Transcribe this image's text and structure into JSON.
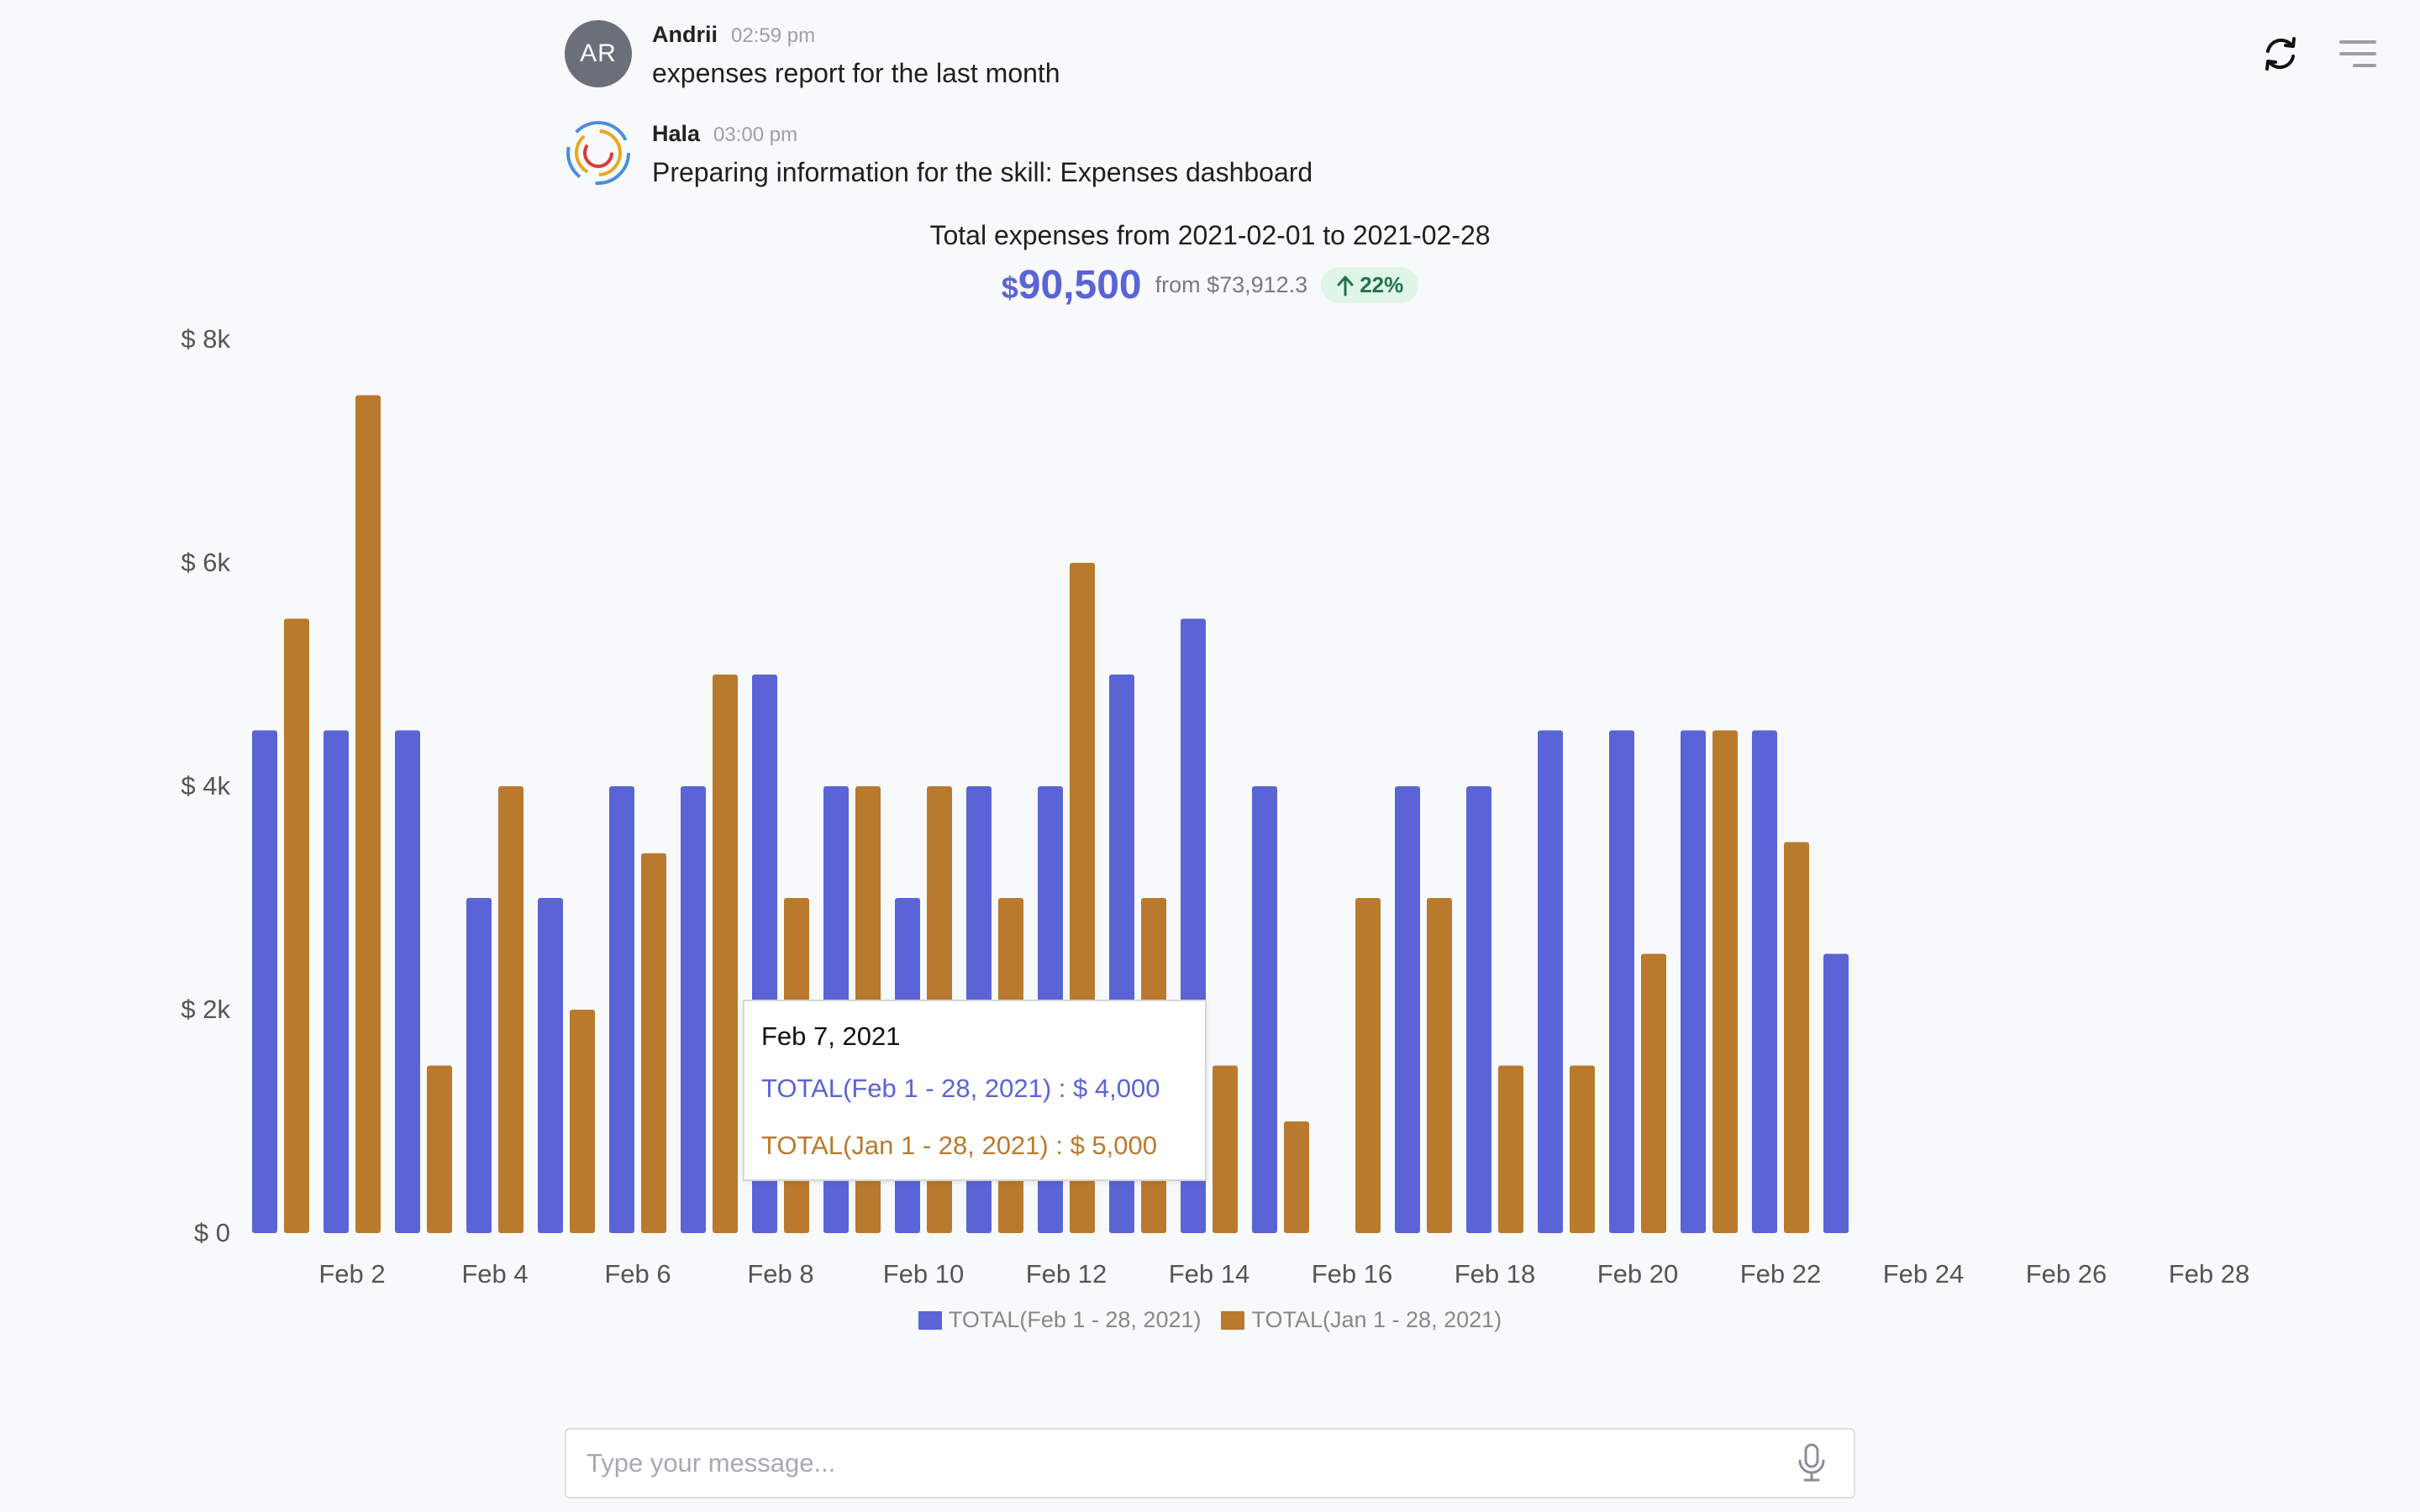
{
  "messages": [
    {
      "initials": "AR",
      "sender": "Andrii",
      "time": "02:59 pm",
      "text": "expenses report for the last month"
    },
    {
      "sender": "Hala",
      "time": "03:00 pm",
      "text": "Preparing information for the skill: Expenses dashboard"
    }
  ],
  "summary": {
    "title": "Total expenses from 2021-02-01 to 2021-02-28",
    "currency": "$",
    "amount": "90,500",
    "from_text": "from $73,912.3",
    "change": "22%"
  },
  "tooltip": {
    "date": "Feb 7, 2021",
    "row1": "TOTAL(Feb 1 - 28, 2021) : $ 4,000",
    "row2": "TOTAL(Jan 1 - 28, 2021) : $ 5,000"
  },
  "input": {
    "placeholder": "Type your message..."
  },
  "colors": {
    "current": "#5a64d6",
    "previous": "#b97a2d",
    "accent": "#5a64d6",
    "up": "#22734a"
  },
  "icons": [
    "refresh-icon",
    "menu-icon",
    "microphone-icon",
    "logo-icon",
    "arrow-up-icon"
  ],
  "chart_data": {
    "type": "bar",
    "ylim": [
      0,
      8000
    ],
    "y_ticks": [
      0,
      2000,
      4000,
      6000,
      8000
    ],
    "y_tick_labels": [
      "$ 0",
      "$ 2k",
      "$ 4k",
      "$ 6k",
      "$ 8k"
    ],
    "categories": [
      1,
      2,
      3,
      4,
      5,
      6,
      7,
      8,
      9,
      10,
      11,
      12,
      13,
      14,
      15,
      16,
      17,
      18,
      19,
      20,
      21,
      22,
      23,
      24,
      25,
      26,
      27,
      28
    ],
    "x_tick_labels": [
      {
        "day": 2,
        "label": "Feb 2"
      },
      {
        "day": 4,
        "label": "Feb 4"
      },
      {
        "day": 6,
        "label": "Feb 6"
      },
      {
        "day": 8,
        "label": "Feb 8"
      },
      {
        "day": 10,
        "label": "Feb 10"
      },
      {
        "day": 12,
        "label": "Feb 12"
      },
      {
        "day": 14,
        "label": "Feb 14"
      },
      {
        "day": 16,
        "label": "Feb 16"
      },
      {
        "day": 18,
        "label": "Feb 18"
      },
      {
        "day": 20,
        "label": "Feb 20"
      },
      {
        "day": 22,
        "label": "Feb 22"
      },
      {
        "day": 24,
        "label": "Feb 24"
      },
      {
        "day": 26,
        "label": "Feb 26"
      },
      {
        "day": 28,
        "label": "Feb 28"
      }
    ],
    "series": [
      {
        "name": "TOTAL(Feb 1 - 28, 2021)",
        "values": [
          4500,
          4500,
          4500,
          3000,
          3000,
          4000,
          4000,
          5000,
          4000,
          3000,
          4000,
          4000,
          5000,
          5500,
          4000,
          0,
          4000,
          4000,
          4500,
          4500,
          4500,
          4500,
          2500,
          0,
          0,
          0,
          0,
          0
        ]
      },
      {
        "name": "TOTAL(Jan 1 - 28, 2021)",
        "values": [
          5500,
          7500,
          1500,
          4000,
          2000,
          3400,
          5000,
          3000,
          4000,
          4000,
          3000,
          6000,
          3000,
          1500,
          1000,
          3000,
          3000,
          1500,
          1500,
          2500,
          4500,
          3500,
          0,
          0,
          0,
          0,
          0,
          0
        ]
      }
    ],
    "legend": "bottom-center"
  }
}
